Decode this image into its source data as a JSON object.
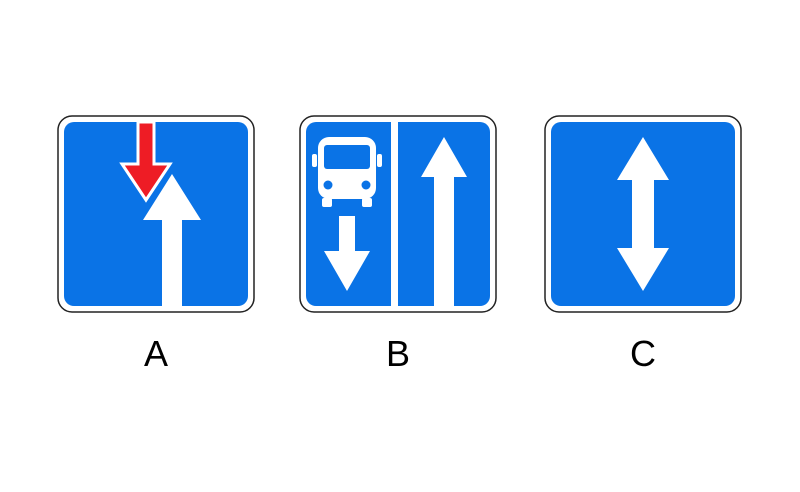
{
  "colors": {
    "sign_blue": "#0a73e6",
    "sign_border": "#222222",
    "sign_white": "#ffffff",
    "priority_red": "#ee1c25"
  },
  "options": [
    {
      "label": "A",
      "sign": "lane-priority-over-oncoming-sign",
      "icons": [
        "red-down-arrow-icon",
        "white-up-arrow-icon"
      ]
    },
    {
      "label": "B",
      "sign": "bus-lane-sign",
      "icons": [
        "bus-icon",
        "white-down-arrow-icon",
        "white-up-arrow-icon"
      ]
    },
    {
      "label": "C",
      "sign": "two-way-traffic-sign",
      "icons": [
        "double-arrow-icon"
      ]
    }
  ]
}
